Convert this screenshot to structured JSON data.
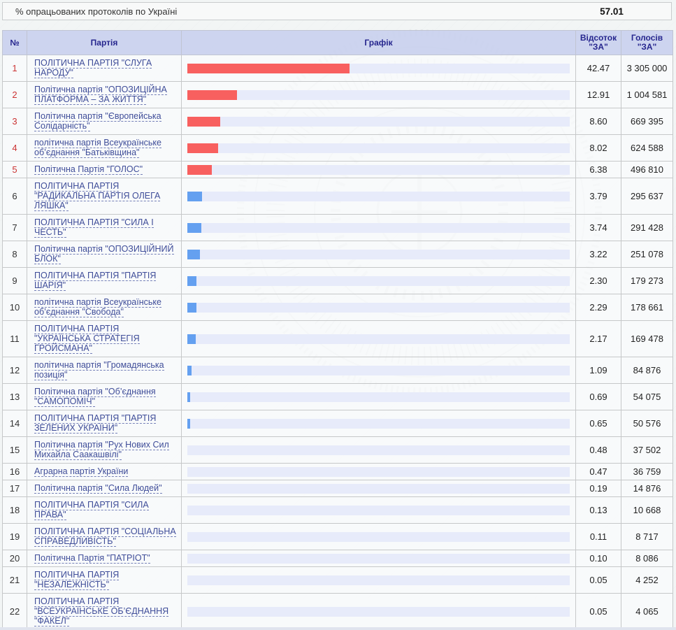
{
  "topbar": {
    "label": "% опрацьованих протоколів по Україні",
    "value": "57.01"
  },
  "table": {
    "headers": {
      "num": "№",
      "party": "Партія",
      "graph": "Графік",
      "percent_line1": "Відсоток",
      "percent_line2": "\"ЗА\"",
      "votes_line1": "Голосів",
      "votes_line2": "\"ЗА\""
    },
    "rows": [
      {
        "num": "1",
        "party": "ПОЛІТИЧНА ПАРТІЯ \"СЛУГА НАРОДУ\"",
        "percent": "42.47",
        "votes": "3 305 000",
        "passed": true
      },
      {
        "num": "2",
        "party": "Політична партія \"ОПОЗИЦІЙНА ПЛАТФОРМА – ЗА ЖИТТЯ\"",
        "percent": "12.91",
        "votes": "1 004 581",
        "passed": true
      },
      {
        "num": "3",
        "party": "Політична партія \"Європейська Солідарність\"",
        "percent": "8.60",
        "votes": "669 395",
        "passed": true
      },
      {
        "num": "4",
        "party": "політична партія Всеукраїнське об’єднання \"Батьківщина\"",
        "percent": "8.02",
        "votes": "624 588",
        "passed": true
      },
      {
        "num": "5",
        "party": "Політична Партія \"ГОЛОС\"",
        "percent": "6.38",
        "votes": "496 810",
        "passed": true
      },
      {
        "num": "6",
        "party": "ПОЛІТИЧНА ПАРТІЯ \"РАДИКАЛЬНА ПАРТІЯ ОЛЕГА ЛЯШКА\"",
        "percent": "3.79",
        "votes": "295 637",
        "passed": false
      },
      {
        "num": "7",
        "party": "ПОЛІТИЧНА ПАРТІЯ \"СИЛА І ЧЕСТЬ\"",
        "percent": "3.74",
        "votes": "291 428",
        "passed": false
      },
      {
        "num": "8",
        "party": "Політична партія \"ОПОЗИЦІЙНИЙ БЛОК\"",
        "percent": "3.22",
        "votes": "251 078",
        "passed": false
      },
      {
        "num": "9",
        "party": "ПОЛІТИЧНА ПАРТІЯ \"ПАРТІЯ ШАРІЯ\"",
        "percent": "2.30",
        "votes": "179 273",
        "passed": false
      },
      {
        "num": "10",
        "party": "політична партія Всеукраїнське об’єднання \"Свобода\"",
        "percent": "2.29",
        "votes": "178 661",
        "passed": false
      },
      {
        "num": "11",
        "party": "ПОЛІТИЧНА ПАРТІЯ \"УКРАЇНСЬКА СТРАТЕГІЯ ГРОЙСМАНА\"",
        "percent": "2.17",
        "votes": "169 478",
        "passed": false
      },
      {
        "num": "12",
        "party": "політична партія \"Громадянська позиція\"",
        "percent": "1.09",
        "votes": "84 876",
        "passed": false
      },
      {
        "num": "13",
        "party": "Політична партія \"Об’єднання \"САМОПОМІЧ\"",
        "percent": "0.69",
        "votes": "54 075",
        "passed": false
      },
      {
        "num": "14",
        "party": "ПОЛІТИЧНА ПАРТІЯ \"ПАРТІЯ ЗЕЛЕНИХ УКРАЇНИ\"",
        "percent": "0.65",
        "votes": "50 576",
        "passed": false
      },
      {
        "num": "15",
        "party": "Політична партія \"Рух Нових Сил Михайла Саакашвілі\"",
        "percent": "0.48",
        "votes": "37 502",
        "passed": false
      },
      {
        "num": "16",
        "party": "Аграрна партія України",
        "percent": "0.47",
        "votes": "36 759",
        "passed": false
      },
      {
        "num": "17",
        "party": "Політична партія \"Сила Людей\"",
        "percent": "0.19",
        "votes": "14 876",
        "passed": false
      },
      {
        "num": "18",
        "party": "ПОЛІТИЧНА ПАРТІЯ \"СИЛА ПРАВА\"",
        "percent": "0.13",
        "votes": "10 668",
        "passed": false
      },
      {
        "num": "19",
        "party": "ПОЛІТИЧНА ПАРТІЯ \"СОЦІАЛЬНА СПРАВЕДЛИВІСТЬ\"",
        "percent": "0.11",
        "votes": "8 717",
        "passed": false
      },
      {
        "num": "20",
        "party": "Політична Партія \"ПАТРІОТ\"",
        "percent": "0.10",
        "votes": "8 086",
        "passed": false
      },
      {
        "num": "21",
        "party": "ПОЛІТИЧНА ПАРТІЯ \"НЕЗАЛЕЖНІСТЬ\"",
        "percent": "0.05",
        "votes": "4 252",
        "passed": false
      },
      {
        "num": "22",
        "party": "ПОЛІТИЧНА ПАРТІЯ \"ВСЕУКРАЇНСЬКЕ ОБ’ЄДНАННЯ \"ФАКЕЛ\"",
        "percent": "0.05",
        "votes": "4 065",
        "passed": false
      }
    ]
  },
  "colors": {
    "bar_passed": "#f8605f",
    "bar_other": "#64a0f0",
    "bar_track": "#e7ebfa",
    "rank_passed_text": "#cb3333",
    "header_bg": "#cad2ee",
    "header_text": "#26268e",
    "party_link": "#3f4d99"
  },
  "chart_data": {
    "type": "bar",
    "title": "% опрацьованих протоколів по Україні: 57.01",
    "categories": [
      "ПОЛІТИЧНА ПАРТІЯ \"СЛУГА НАРОДУ\"",
      "Політична партія \"ОПОЗИЦІЙНА ПЛАТФОРМА – ЗА ЖИТТЯ\"",
      "Політична партія \"Європейська Солідарність\"",
      "політична партія Всеукраїнське об’єднання \"Батьківщина\"",
      "Політична Партія \"ГОЛОС\"",
      "ПОЛІТИЧНА ПАРТІЯ \"РАДИКАЛЬНА ПАРТІЯ ОЛЕГА ЛЯШКА\"",
      "ПОЛІТИЧНА ПАРТІЯ \"СИЛА І ЧЕСТЬ\"",
      "Політична партія \"ОПОЗИЦІЙНИЙ БЛОК\"",
      "ПОЛІТИЧНА ПАРТІЯ \"ПАРТІЯ ШАРІЯ\"",
      "політична партія Всеукраїнське об’єднання \"Свобода\"",
      "ПОЛІТИЧНА ПАРТІЯ \"УКРАЇНСЬКА СТРАТЕГІЯ ГРОЙСМАНА\"",
      "політична партія \"Громадянська позиція\"",
      "Політична партія \"Об’єднання \"САМОПОМІЧ\"",
      "ПОЛІТИЧНА ПАРТІЯ \"ПАРТІЯ ЗЕЛЕНИХ УКРАЇНИ\"",
      "Політична партія \"Рух Нових Сил Михайла Саакашвілі\"",
      "Аграрна партія України",
      "Політична партія \"Сила Людей\"",
      "ПОЛІТИЧНА ПАРТІЯ \"СИЛА ПРАВА\"",
      "ПОЛІТИЧНА ПАРТІЯ \"СОЦІАЛЬНА СПРАВЕДЛИВІСТЬ\"",
      "Політична Партія \"ПАТРІОТ\"",
      "ПОЛІТИЧНА ПАРТІЯ \"НЕЗАЛЕЖНІСТЬ\"",
      "ПОЛІТИЧНА ПАРТІЯ \"ВСЕУКРАЇНСЬКЕ ОБ’ЄДНАННЯ \"ФАКЕЛ\""
    ],
    "series": [
      {
        "name": "Відсоток \"ЗА\"",
        "values": [
          42.47,
          12.91,
          8.6,
          8.02,
          6.38,
          3.79,
          3.74,
          3.22,
          2.3,
          2.29,
          2.17,
          1.09,
          0.69,
          0.65,
          0.48,
          0.47,
          0.19,
          0.13,
          0.11,
          0.1,
          0.05,
          0.05
        ]
      },
      {
        "name": "Голосів \"ЗА\"",
        "values": [
          3305000,
          1004581,
          669395,
          624588,
          496810,
          295637,
          291428,
          251078,
          179273,
          178661,
          169478,
          84876,
          54075,
          50576,
          37502,
          36759,
          14876,
          10668,
          8717,
          8086,
          4252,
          4065
        ]
      }
    ],
    "xlabel": "Партія",
    "ylabel": "Відсоток \"ЗА\"",
    "xlim": [
      0,
      100
    ],
    "orientation": "horizontal",
    "grid": false,
    "legend_position": "none"
  }
}
